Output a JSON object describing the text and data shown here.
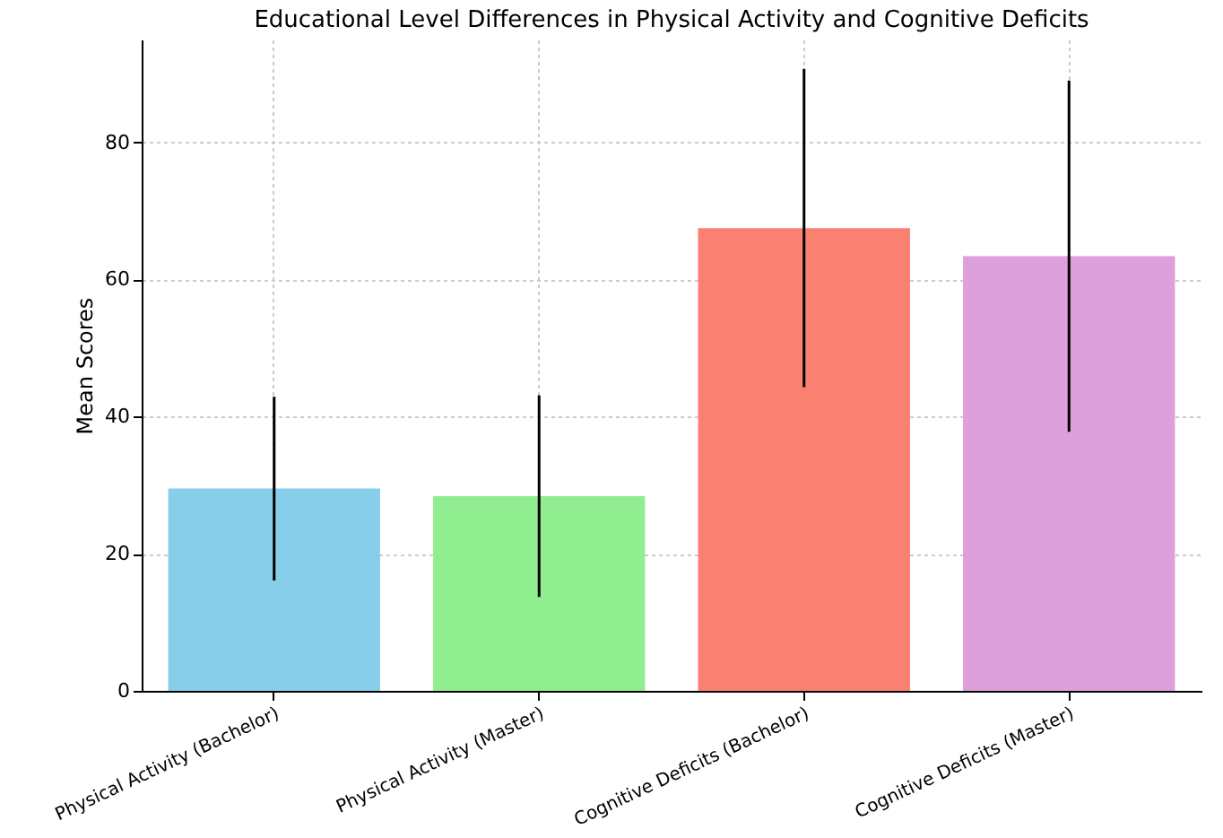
{
  "chart_data": {
    "type": "bar",
    "title": "Educational Level Differences in Physical Activity and Cognitive Deficits",
    "ylabel": "Mean Scores",
    "categories": [
      "Physical Activity (Bachelor)",
      "Physical Activity (Master)",
      "Cognitive Deficits (Bachelor)",
      "Cognitive Deficits (Master)"
    ],
    "values": [
      29.5,
      28.4,
      67.5,
      63.4
    ],
    "errors": [
      13.4,
      14.7,
      23.2,
      25.6
    ],
    "colors": [
      "#87ceeb",
      "#90ee90",
      "#fa8072",
      "#dda0dd"
    ],
    "ylim": [
      0,
      95
    ],
    "yticks": [
      0,
      20,
      40,
      60,
      80
    ],
    "grid": true
  }
}
